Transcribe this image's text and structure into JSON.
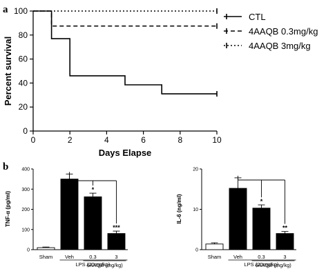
{
  "panel_a": {
    "letter": "a",
    "chart_data": {
      "type": "line",
      "step": true,
      "xlabel": "Days Elapse",
      "ylabel": "Percent survival",
      "xlim": [
        0,
        10
      ],
      "ylim": [
        0,
        100
      ],
      "xticks": [
        "0",
        "2",
        "4",
        "6",
        "8",
        "10"
      ],
      "yticks": [
        "0",
        "20",
        "40",
        "60",
        "80",
        "100"
      ],
      "legend_position": "top-right",
      "series": [
        {
          "name": "CTL",
          "style": "solid",
          "x": [
            0,
            1,
            2,
            5,
            7,
            10
          ],
          "y": [
            100,
            77,
            46,
            38.5,
            31,
            31
          ]
        },
        {
          "name": "4AAQB 0.3mg/kg",
          "style": "dashed",
          "x": [
            0,
            1,
            10
          ],
          "y": [
            100,
            87.5,
            87.5
          ]
        },
        {
          "name": "4AAQB 3mg/kg",
          "style": "dotted",
          "x": [
            0,
            10
          ],
          "y": [
            100,
            100
          ]
        }
      ]
    }
  },
  "panel_b": {
    "letter": "b",
    "charts": [
      {
        "type": "bar",
        "ylabel": "TNF-α (pg/ml)",
        "ylim": [
          0,
          400
        ],
        "yticks": [
          "0",
          "100",
          "200",
          "300",
          "400"
        ],
        "categories": [
          "Sham",
          "Veh",
          "0.3",
          "3"
        ],
        "values": [
          10,
          350,
          262,
          80
        ],
        "errors": [
          3,
          25,
          18,
          12
        ],
        "fill": [
          "#ffffff",
          "#000000",
          "#000000",
          "#000000"
        ],
        "significance": [
          "",
          "",
          "*",
          "***"
        ],
        "group_label": "4AAQB (mg/kg)",
        "lps_label": "LPS (20mg/kg)"
      },
      {
        "type": "bar",
        "ylabel": "IL-6 (ng/ml)",
        "ylim": [
          0,
          20
        ],
        "yticks": [
          "0",
          "10",
          "20"
        ],
        "categories": [
          "Sham",
          "Veh",
          "0.3",
          "3"
        ],
        "values": [
          1.4,
          15.2,
          10.3,
          4.0
        ],
        "errors": [
          0.3,
          2.6,
          0.8,
          0.5
        ],
        "fill": [
          "#ffffff",
          "#000000",
          "#000000",
          "#000000"
        ],
        "significance": [
          "",
          "",
          "*",
          "**"
        ],
        "group_label": "4AAQB (mg/kg)",
        "lps_label": "LPS (20mg/kg)"
      }
    ]
  }
}
